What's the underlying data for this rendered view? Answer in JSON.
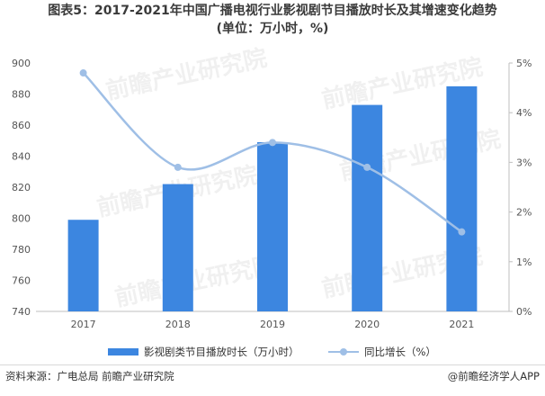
{
  "title_line1": "图表5：2017-2021年中国广播电视行业影视剧节目播放时长及其增速变化趋势",
  "title_line2": "(单位：万小时，%)",
  "source": "资料来源：广电总局 前瞻产业研究院",
  "credit": "@前瞻经济学人APP",
  "watermark": "前瞻产业研究院",
  "colors": {
    "bar": "#3c86e0",
    "line": "#9fbfe6"
  },
  "chart_data": {
    "type": "bar",
    "categories": [
      "2017",
      "2018",
      "2019",
      "2020",
      "2021"
    ],
    "series": [
      {
        "name": "影视剧类节目播放时长（万小时）",
        "type": "bar",
        "axis": "left",
        "values": [
          799,
          822,
          849,
          873,
          885
        ]
      },
      {
        "name": "同比增长（%）",
        "type": "line",
        "axis": "right",
        "smooth": true,
        "values": [
          4.8,
          2.9,
          3.4,
          2.9,
          1.6
        ]
      }
    ],
    "y_left": {
      "min": 740,
      "max": 900,
      "ticks": [
        "740",
        "760",
        "780",
        "800",
        "820",
        "840",
        "860",
        "880",
        "900"
      ]
    },
    "y_right": {
      "min": 0,
      "max": 5,
      "ticks": [
        "0%",
        "1%",
        "2%",
        "3%",
        "4%",
        "5%"
      ]
    },
    "grid": false,
    "legend": "bottom"
  }
}
